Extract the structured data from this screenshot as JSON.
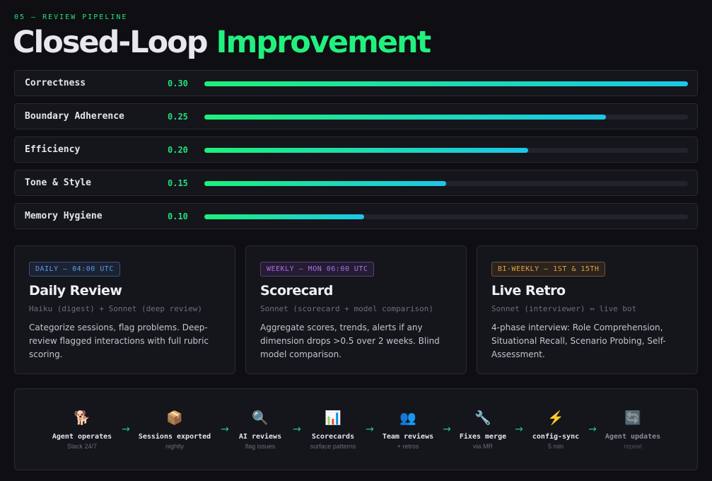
{
  "header": {
    "eyebrow": "05 — REVIEW PIPELINE",
    "title_part1": "Closed-Loop",
    "title_part2": "Improvement"
  },
  "metrics": [
    {
      "name": "Correctness",
      "value": "0.30",
      "fill_fraction": 1.0
    },
    {
      "name": "Boundary Adherence",
      "value": "0.25",
      "fill_fraction": 0.83
    },
    {
      "name": "Efficiency",
      "value": "0.20",
      "fill_fraction": 0.67
    },
    {
      "name": "Tone & Style",
      "value": "0.15",
      "fill_fraction": 0.5
    },
    {
      "name": "Memory Hygiene",
      "value": "0.10",
      "fill_fraction": 0.33
    }
  ],
  "cards": [
    {
      "badge": "DAILY — 04:00 UTC",
      "badge_color": "#5b9cf0",
      "title": "Daily Review",
      "models": "Haiku (digest) + Sonnet (deep review)",
      "description": "Categorize sessions, flag problems. Deep-review flagged interactions with full rubric scoring."
    },
    {
      "badge": "WEEKLY — MON 06:00 UTC",
      "badge_color": "#b06cf0",
      "title": "Scorecard",
      "models": "Sonnet (scorecard + model comparison)",
      "description": "Aggregate scores, trends, alerts if any dimension drops >0.5 over 2 weeks. Blind model comparison."
    },
    {
      "badge": "BI-WEEKLY — 1ST & 15TH",
      "badge_color": "#e8a23a",
      "title": "Live Retro",
      "models": "Sonnet (interviewer) ↔ live bot",
      "description": "4-phase interview: Role Comprehension, Situational Recall, Scenario Probing, Self-Assessment."
    }
  ],
  "pipeline": [
    {
      "icon": "🐕",
      "icon_name": "dog-icon",
      "label": "Agent operates",
      "sub": "Slack 24/7"
    },
    {
      "icon": "📦",
      "icon_name": "package-icon",
      "label": "Sessions exported",
      "sub": "nightly"
    },
    {
      "icon": "🔍",
      "icon_name": "magnifier-icon",
      "label": "AI reviews",
      "sub": "flag issues"
    },
    {
      "icon": "📊",
      "icon_name": "bar-chart-icon",
      "label": "Scorecards",
      "sub": "surface patterns"
    },
    {
      "icon": "👥",
      "icon_name": "people-icon",
      "label": "Team reviews",
      "sub": "+ retros"
    },
    {
      "icon": "🔧",
      "icon_name": "wrench-icon",
      "label": "Fixes merge",
      "sub": "via MR"
    },
    {
      "icon": "⚡",
      "icon_name": "lightning-icon",
      "label": "config-sync",
      "sub": "5 min"
    },
    {
      "icon": "🔄",
      "icon_name": "repeat-icon",
      "label": "Agent updates",
      "sub": "repeat"
    }
  ],
  "colors": {
    "accent": "#22f07e",
    "gradient_end": "#1cc7e6"
  }
}
